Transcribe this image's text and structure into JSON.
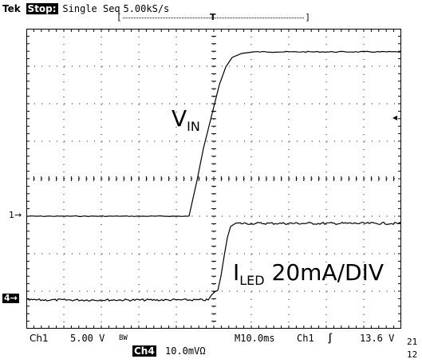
{
  "header": {
    "brand": "Tek",
    "state": "Stop:",
    "mode": "Single Seq",
    "rate": "5.00kS/s"
  },
  "trigger_bracket": {
    "left": "[",
    "right": "]",
    "marker": "T"
  },
  "markers": {
    "ch1": "1→",
    "ch4": "4→",
    "trigger_level": "◂"
  },
  "labels": {
    "vin_main": "V",
    "vin_sub": "IN",
    "iled_main": "I",
    "iled_sub": "LED",
    "iled_scale": "20mA/DIV"
  },
  "footer": {
    "ch1_label": "Ch1",
    "ch1_scale": "5.00 V",
    "bw_mark": "BW",
    "ch4_label": "Ch4",
    "ch4_scale": "10.0mVΩ",
    "timebase": "M10.0ms",
    "trigger_source": "Ch1",
    "trigger_slope": "∫",
    "trigger_level": "13.6 V",
    "corner_top": "21",
    "corner_bottom": "12"
  },
  "colors": {
    "trace": "#000000",
    "background": "#ffffff",
    "grid": "#000000"
  }
}
